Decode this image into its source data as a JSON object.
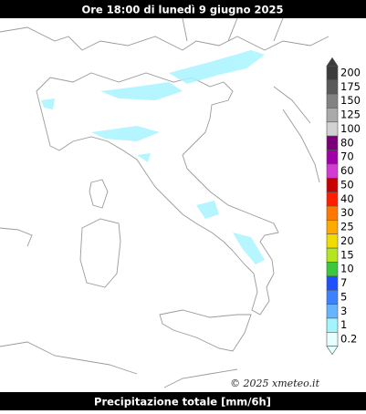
{
  "header": {
    "title": "Ore 18:00 di lunedì 9 giugno 2025"
  },
  "footer": {
    "title": "Precipitazione totale [mm/6h]"
  },
  "credit": "© 2025 xmeteo.it",
  "legend": [
    {
      "label": "200",
      "color": "#3c3c3c"
    },
    {
      "label": "175",
      "color": "#5a5a5a"
    },
    {
      "label": "150",
      "color": "#828282"
    },
    {
      "label": "125",
      "color": "#aaaaaa"
    },
    {
      "label": "100",
      "color": "#d2d2d2"
    },
    {
      "label": "80",
      "color": "#7a007a"
    },
    {
      "label": "70",
      "color": "#a000a8"
    },
    {
      "label": "60",
      "color": "#d23cd2"
    },
    {
      "label": "50",
      "color": "#c80000"
    },
    {
      "label": "40",
      "color": "#ff1e00"
    },
    {
      "label": "30",
      "color": "#ff7800"
    },
    {
      "label": "25",
      "color": "#ffaa00"
    },
    {
      "label": "20",
      "color": "#f0dc00"
    },
    {
      "label": "15",
      "color": "#b4e61e"
    },
    {
      "label": "10",
      "color": "#3cc83c"
    },
    {
      "label": "7",
      "color": "#1e50ff"
    },
    {
      "label": "5",
      "color": "#3c82ff"
    },
    {
      "label": "3",
      "color": "#64b4ff"
    },
    {
      "label": "1",
      "color": "#a0f5ff"
    },
    {
      "label": "0.2",
      "color": "#e6ffff"
    }
  ]
}
